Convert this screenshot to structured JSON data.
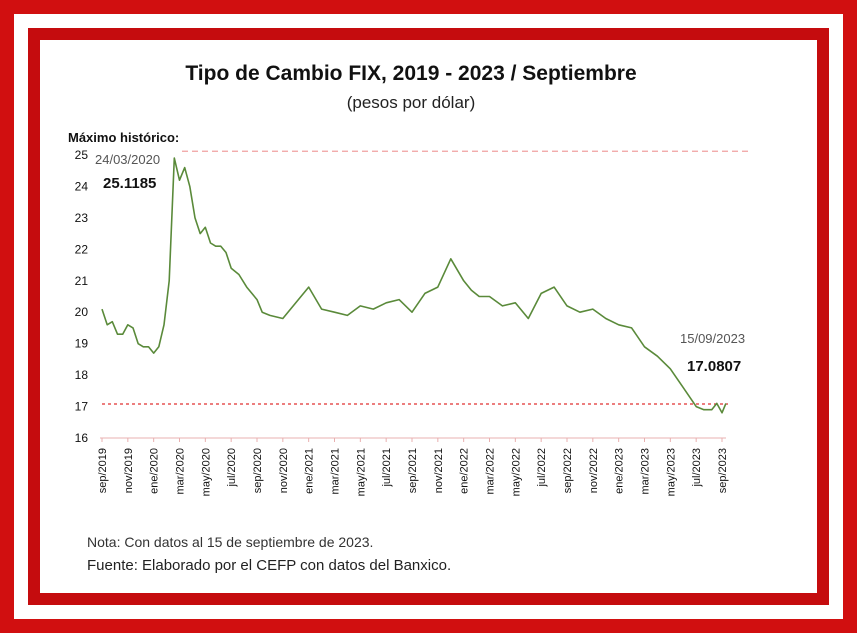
{
  "frame": {
    "outer_color": "#d10f10",
    "inner_color": "#c50c0e"
  },
  "chart_data": {
    "type": "line",
    "title": "Tipo de Cambio FIX, 2019 - 2023 / Septiembre",
    "subtitle": "(pesos por dólar)",
    "xlabel": "",
    "ylabel": "",
    "ylim": [
      16,
      25
    ],
    "yticks": [
      "25",
      "24",
      "23",
      "22",
      "21",
      "20",
      "19",
      "18",
      "17",
      "16"
    ],
    "xticks": [
      "sep/2019",
      "nov/2019",
      "ene/2020",
      "mar/2020",
      "may/2020",
      "jul/2020",
      "sep/2020",
      "nov/2020",
      "ene/2021",
      "mar/2021",
      "may/2021",
      "jul/2021",
      "sep/2021",
      "nov/2021",
      "ene/2022",
      "mar/2022",
      "may/2022",
      "jul/2022",
      "sep/2022",
      "nov/2022",
      "ene/2023",
      "mar/2023",
      "may/2023",
      "jul/2023",
      "sep/2023"
    ],
    "grid": false,
    "series": [
      {
        "color": "#5a8a3a",
        "x": [
          0,
          0.2,
          0.4,
          0.6,
          0.8,
          1.0,
          1.2,
          1.4,
          1.6,
          1.8,
          2.0,
          2.2,
          2.4,
          2.6,
          2.8,
          3.0,
          3.2,
          3.4,
          3.6,
          3.8,
          4.0,
          4.2,
          4.4,
          4.6,
          4.8,
          5.0,
          5.3,
          5.6,
          6.0,
          6.2,
          6.5,
          7.0,
          7.5,
          8.0,
          8.5,
          9.0,
          9.5,
          10.0,
          10.5,
          11.0,
          11.5,
          12.0,
          12.5,
          13.0,
          13.5,
          14.0,
          14.3,
          14.6,
          15.0,
          15.5,
          16.0,
          16.5,
          17.0,
          17.5,
          18.0,
          18.5,
          19.0,
          19.5,
          20.0,
          20.5,
          21.0,
          21.5,
          22.0,
          22.5,
          23.0,
          23.3,
          23.6,
          23.8,
          24.0,
          24.15
        ],
        "values": [
          20.1,
          19.6,
          19.7,
          19.3,
          19.3,
          19.6,
          19.5,
          19.0,
          18.9,
          18.9,
          18.7,
          18.9,
          19.6,
          21.0,
          24.9,
          24.2,
          24.6,
          24.0,
          23.0,
          22.5,
          22.7,
          22.2,
          22.1,
          22.1,
          21.9,
          21.4,
          21.2,
          20.8,
          20.4,
          20.0,
          19.9,
          19.8,
          20.3,
          20.8,
          20.1,
          20.0,
          19.9,
          20.2,
          20.1,
          20.3,
          20.4,
          20.0,
          20.6,
          20.8,
          21.7,
          21.0,
          20.7,
          20.5,
          20.5,
          20.2,
          20.3,
          19.8,
          20.6,
          20.8,
          20.2,
          20.0,
          20.1,
          19.8,
          19.6,
          19.5,
          18.9,
          18.6,
          18.2,
          17.6,
          17.0,
          16.9,
          16.9,
          17.1,
          16.8,
          17.1
        ]
      }
    ],
    "reference_lines": [
      {
        "value": 25.1185,
        "style": "dashed",
        "color": "#f0a0a0"
      },
      {
        "value": 17.0807,
        "style": "dashed",
        "color": "#e03030"
      }
    ],
    "annotations": {
      "max_label": "Máximo histórico:",
      "max_date": "24/03/2020",
      "max_value": "25.1185",
      "last_date": "15/09/2023",
      "last_value": "17.0807"
    }
  },
  "notes": {
    "note": "Nota: Con datos al 15 de septiembre de 2023.",
    "source": "Fuente: Elaborado por el CEFP con datos del Banxico."
  }
}
